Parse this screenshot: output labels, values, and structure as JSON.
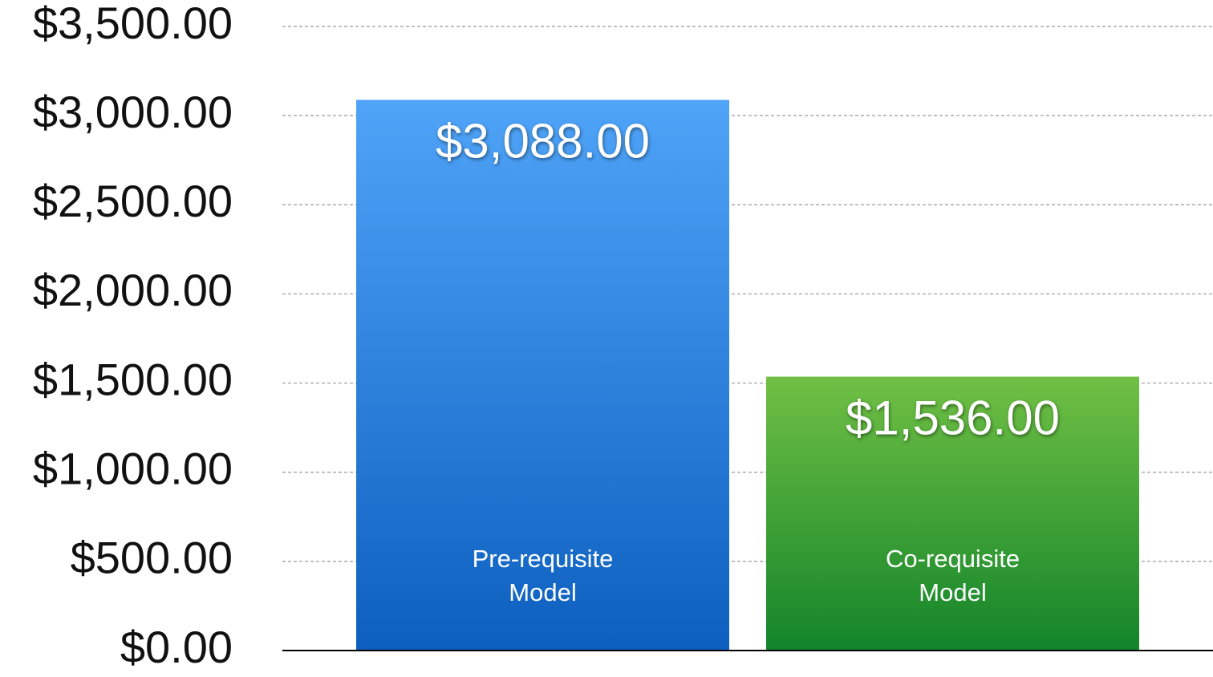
{
  "chart_data": {
    "type": "bar",
    "categories": [
      "Pre-requisite Model",
      "Co-requisite Model"
    ],
    "values": [
      3088,
      1536
    ],
    "value_labels": [
      "$3,088.00",
      "$1,536.00"
    ],
    "colors": [
      "#4fa4f8",
      "#70c044"
    ],
    "ylim": [
      0,
      3500
    ],
    "yticks": [
      {
        "value": 0,
        "label": "$0.00"
      },
      {
        "value": 500,
        "label": "$500.00"
      },
      {
        "value": 1000,
        "label": "$1,000.00"
      },
      {
        "value": 1500,
        "label": "$1,500.00"
      },
      {
        "value": 2000,
        "label": "$2,000.00"
      },
      {
        "value": 2500,
        "label": "$2,500.00"
      },
      {
        "value": 3000,
        "label": "$3,000.00"
      },
      {
        "value": 3500,
        "label": "$3,500.00"
      }
    ],
    "grid": true
  }
}
